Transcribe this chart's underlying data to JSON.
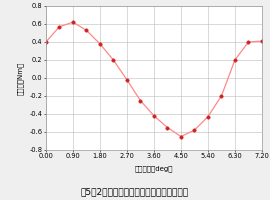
{
  "title": "図5　2相励磁時のスティフネストルク特性",
  "xlabel": "回転角度（deg）",
  "ylabel": "トルク（Nm）",
  "xlim": [
    0.0,
    7.2
  ],
  "ylim": [
    -0.8,
    0.8
  ],
  "xticks": [
    0.0,
    0.9,
    1.8,
    2.7,
    3.6,
    4.5,
    5.4,
    6.3,
    7.2
  ],
  "yticks": [
    -0.8,
    -0.6,
    -0.4,
    -0.2,
    0.0,
    0.2,
    0.4,
    0.6,
    0.8
  ],
  "x_data": [
    0.0,
    0.45,
    0.9,
    1.35,
    1.8,
    2.25,
    2.7,
    3.15,
    3.6,
    4.05,
    4.5,
    4.95,
    5.4,
    5.85,
    6.3,
    6.75,
    7.2
  ],
  "y_data": [
    0.4,
    0.57,
    0.62,
    0.53,
    0.38,
    0.2,
    -0.02,
    -0.25,
    -0.42,
    -0.55,
    -0.65,
    -0.58,
    -0.43,
    -0.2,
    0.2,
    0.4,
    0.41
  ],
  "line_color": "#ff8888",
  "marker_color": "#cc2222",
  "bg_color": "#efefef",
  "plot_bg_color": "#ffffff",
  "grid_color": "#bbbbbb",
  "title_fontsize": 6.5,
  "label_fontsize": 5.0,
  "tick_fontsize": 4.8
}
